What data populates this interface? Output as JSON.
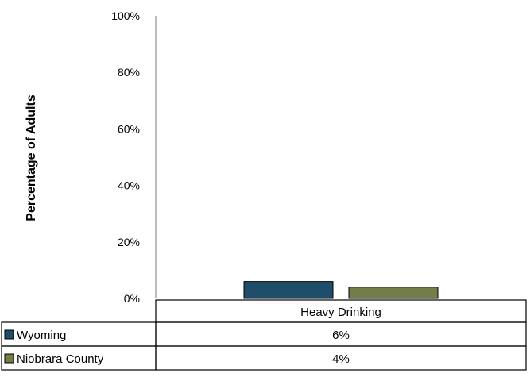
{
  "chart_data": {
    "type": "bar",
    "title": "",
    "xlabel": "",
    "ylabel": "Percentage of Adults",
    "ylim": [
      0,
      100
    ],
    "y_ticks": [
      "0%",
      "20%",
      "40%",
      "60%",
      "80%",
      "100%"
    ],
    "y_tick_values": [
      0,
      20,
      40,
      60,
      80,
      100
    ],
    "categories": [
      "Heavy Drinking"
    ],
    "grid": false,
    "legend": "data-table",
    "series": [
      {
        "name": "Wyoming",
        "values": [
          6
        ],
        "value_labels": [
          "6%"
        ],
        "color": "#1f4e6b"
      },
      {
        "name": "Niobrara County",
        "values": [
          4
        ],
        "value_labels": [
          "4%"
        ],
        "color": "#737c4b"
      }
    ]
  }
}
